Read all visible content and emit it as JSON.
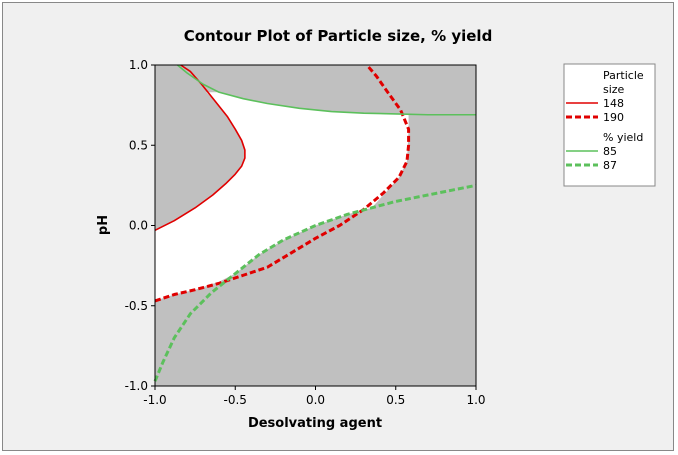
{
  "chart_data": {
    "type": "contour",
    "title": "Contour Plot of Particle size, % yield",
    "xlabel": "Desolvating agent",
    "ylabel": "pH",
    "xlim": [
      -1.0,
      1.0
    ],
    "ylim": [
      -1.0,
      1.0
    ],
    "x_ticks": [
      "-1.0",
      "-0.5",
      "0.0",
      "0.5",
      "1.0"
    ],
    "y_ticks": [
      "-1.0",
      "-0.5",
      "0.0",
      "0.5",
      "1.0"
    ],
    "colors": {
      "infeasible_region": "#c0c0c0",
      "feasible_region": "#ffffff",
      "particle_size": "#e00000",
      "yield": "#5cc05c"
    },
    "legend": {
      "placement": "right",
      "groups": [
        {
          "title_lines": [
            "Particle",
            "size"
          ],
          "entries": [
            {
              "label": "148",
              "color": "#e00000",
              "style": "solid"
            },
            {
              "label": "190",
              "color": "#e00000",
              "style": "dashed"
            }
          ]
        },
        {
          "title_lines": [
            "% yield"
          ],
          "entries": [
            {
              "label": "85",
              "color": "#5cc05c",
              "style": "solid"
            },
            {
              "label": "87",
              "color": "#5cc05c",
              "style": "dashed"
            }
          ]
        }
      ]
    },
    "series": [
      {
        "name": "148",
        "group": "Particle size",
        "color": "#e00000",
        "style": "solid",
        "points": [
          [
            -1.0,
            -0.03
          ],
          [
            -0.88,
            0.03
          ],
          [
            -0.75,
            0.11
          ],
          [
            -0.64,
            0.19
          ],
          [
            -0.56,
            0.26
          ],
          [
            -0.5,
            0.32
          ],
          [
            -0.46,
            0.37
          ],
          [
            -0.44,
            0.42
          ],
          [
            -0.44,
            0.47
          ],
          [
            -0.46,
            0.53
          ],
          [
            -0.5,
            0.6
          ],
          [
            -0.55,
            0.68
          ],
          [
            -0.63,
            0.78
          ],
          [
            -0.71,
            0.88
          ],
          [
            -0.78,
            0.96
          ],
          [
            -0.84,
            1.0
          ]
        ]
      },
      {
        "name": "190",
        "group": "Particle size",
        "color": "#e00000",
        "style": "dashed",
        "points": [
          [
            -1.0,
            -0.47
          ],
          [
            -0.88,
            -0.43
          ],
          [
            -0.75,
            -0.4
          ],
          [
            -0.6,
            -0.36
          ],
          [
            -0.45,
            -0.31
          ],
          [
            -0.3,
            -0.26
          ],
          [
            -0.15,
            -0.17
          ],
          [
            0.0,
            -0.08
          ],
          [
            0.15,
            0.0
          ],
          [
            0.3,
            0.1
          ],
          [
            0.42,
            0.2
          ],
          [
            0.52,
            0.3
          ],
          [
            0.57,
            0.4
          ],
          [
            0.58,
            0.5
          ],
          [
            0.58,
            0.6
          ],
          [
            0.53,
            0.72
          ],
          [
            0.45,
            0.83
          ],
          [
            0.38,
            0.93
          ],
          [
            0.32,
            1.0
          ]
        ]
      },
      {
        "name": "85",
        "group": "% yield",
        "color": "#5cc05c",
        "style": "solid",
        "points": [
          [
            -0.86,
            1.0
          ],
          [
            -0.8,
            0.95
          ],
          [
            -0.7,
            0.88
          ],
          [
            -0.6,
            0.83
          ],
          [
            -0.45,
            0.79
          ],
          [
            -0.3,
            0.76
          ],
          [
            -0.1,
            0.73
          ],
          [
            0.1,
            0.71
          ],
          [
            0.3,
            0.7
          ],
          [
            0.5,
            0.695
          ],
          [
            0.7,
            0.69
          ],
          [
            0.85,
            0.69
          ],
          [
            1.0,
            0.69
          ]
        ]
      },
      {
        "name": "87",
        "group": "% yield",
        "color": "#5cc05c",
        "style": "dashed",
        "points": [
          [
            -1.0,
            -0.97
          ],
          [
            -0.95,
            -0.85
          ],
          [
            -0.88,
            -0.7
          ],
          [
            -0.78,
            -0.55
          ],
          [
            -0.65,
            -0.42
          ],
          [
            -0.5,
            -0.3
          ],
          [
            -0.35,
            -0.18
          ],
          [
            -0.2,
            -0.09
          ],
          [
            0.0,
            0.0
          ],
          [
            0.2,
            0.07
          ],
          [
            0.35,
            0.11
          ],
          [
            0.5,
            0.15
          ],
          [
            0.7,
            0.19
          ],
          [
            0.85,
            0.22
          ],
          [
            1.0,
            0.25
          ]
        ]
      }
    ],
    "feasible_region": {
      "vertices": [
        [
          -1.0,
          -0.03
        ],
        [
          -0.88,
          0.03
        ],
        [
          -0.75,
          0.11
        ],
        [
          -0.64,
          0.19
        ],
        [
          -0.56,
          0.26
        ],
        [
          -0.5,
          0.32
        ],
        [
          -0.46,
          0.37
        ],
        [
          -0.44,
          0.42
        ],
        [
          -0.44,
          0.47
        ],
        [
          -0.46,
          0.53
        ],
        [
          -0.5,
          0.6
        ],
        [
          -0.55,
          0.68
        ],
        [
          -0.63,
          0.78
        ],
        [
          -0.68,
          0.83
        ],
        [
          -0.6,
          0.83
        ],
        [
          -0.45,
          0.79
        ],
        [
          -0.3,
          0.76
        ],
        [
          -0.1,
          0.73
        ],
        [
          0.1,
          0.71
        ],
        [
          0.3,
          0.7
        ],
        [
          0.5,
          0.695
        ],
        [
          0.58,
          0.69
        ],
        [
          0.58,
          0.6
        ],
        [
          0.57,
          0.4
        ],
        [
          0.52,
          0.3
        ],
        [
          0.45,
          0.22
        ],
        [
          0.35,
          0.11
        ],
        [
          0.2,
          0.07
        ],
        [
          0.0,
          0.0
        ],
        [
          -0.2,
          -0.09
        ],
        [
          -0.35,
          -0.18
        ],
        [
          -0.5,
          -0.3
        ],
        [
          -0.6,
          -0.35
        ],
        [
          -0.75,
          -0.4
        ],
        [
          -0.88,
          -0.43
        ],
        [
          -1.0,
          -0.47
        ]
      ]
    }
  }
}
